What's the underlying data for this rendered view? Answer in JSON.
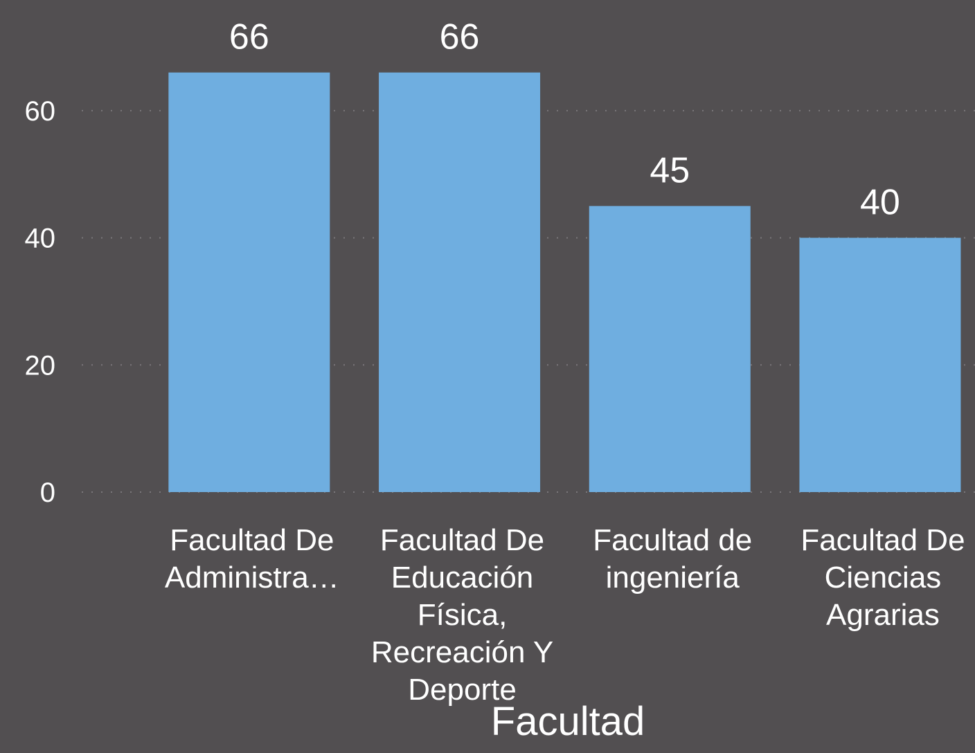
{
  "chart_data": {
    "type": "bar",
    "categories": [
      "Facultad De Administra…",
      "Facultad De Educación Física, Recreación Y Deporte",
      "Facultad de ingeniería",
      "Facultad De Ciencias Agrarias"
    ],
    "values": [
      66,
      66,
      45,
      40
    ],
    "color": "#6faee0",
    "x_label": "Facultad",
    "ylim": [
      0,
      70
    ],
    "yticks": [
      0,
      20,
      40,
      60
    ],
    "grid": true
  }
}
